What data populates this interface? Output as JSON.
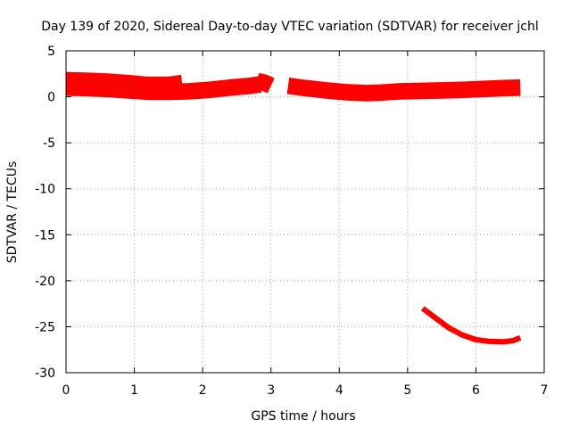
{
  "chart_data": {
    "type": "scatter",
    "title": "Day 139 of 2020, Sidereal Day-to-day VTEC variation (SDTVAR) for receiver jchl",
    "xlabel": "GPS time / hours",
    "ylabel": "SDTVAR / TECUs",
    "xlim": [
      0,
      7
    ],
    "ylim": [
      -30,
      5
    ],
    "xticks": [
      0,
      1,
      2,
      3,
      4,
      5,
      6,
      7
    ],
    "yticks": [
      5,
      0,
      -5,
      -10,
      -15,
      -20,
      -25,
      -30
    ],
    "grid": true,
    "color": "#ff0000",
    "series": [
      {
        "band_width_tecu": 0.9,
        "segments": [
          [
            [
              0.0,
              1.8
            ],
            [
              0.3,
              1.75
            ],
            [
              0.6,
              1.65
            ],
            [
              0.9,
              1.5
            ],
            [
              1.2,
              1.3
            ],
            [
              1.5,
              1.3
            ],
            [
              1.7,
              1.5
            ]
          ],
          [
            [
              0.0,
              1.0
            ],
            [
              0.3,
              0.95
            ],
            [
              0.6,
              0.85
            ],
            [
              0.9,
              0.7
            ],
            [
              1.2,
              0.55
            ],
            [
              1.5,
              0.55
            ],
            [
              1.8,
              0.6
            ],
            [
              2.1,
              0.75
            ],
            [
              2.4,
              1.0
            ],
            [
              2.7,
              1.2
            ],
            [
              2.85,
              1.35
            ]
          ],
          [
            [
              2.8,
              1.7
            ],
            [
              2.9,
              1.55
            ],
            [
              3.0,
              1.2
            ]
          ],
          [
            [
              3.25,
              1.2
            ],
            [
              3.5,
              0.95
            ],
            [
              3.8,
              0.7
            ],
            [
              4.1,
              0.5
            ],
            [
              4.4,
              0.4
            ],
            [
              4.6,
              0.45
            ],
            [
              4.9,
              0.6
            ],
            [
              5.2,
              0.65
            ],
            [
              5.5,
              0.7
            ],
            [
              5.8,
              0.75
            ],
            [
              6.1,
              0.85
            ],
            [
              6.4,
              0.95
            ],
            [
              6.65,
              1.0
            ]
          ]
        ]
      },
      {
        "band_width_tecu": 0.3,
        "segments": [
          [
            [
              5.22,
              -23.0
            ],
            [
              5.4,
              -24.0
            ],
            [
              5.6,
              -25.1
            ],
            [
              5.8,
              -25.9
            ],
            [
              6.0,
              -26.4
            ],
            [
              6.2,
              -26.6
            ],
            [
              6.4,
              -26.65
            ],
            [
              6.55,
              -26.5
            ],
            [
              6.65,
              -26.2
            ]
          ]
        ]
      }
    ]
  }
}
